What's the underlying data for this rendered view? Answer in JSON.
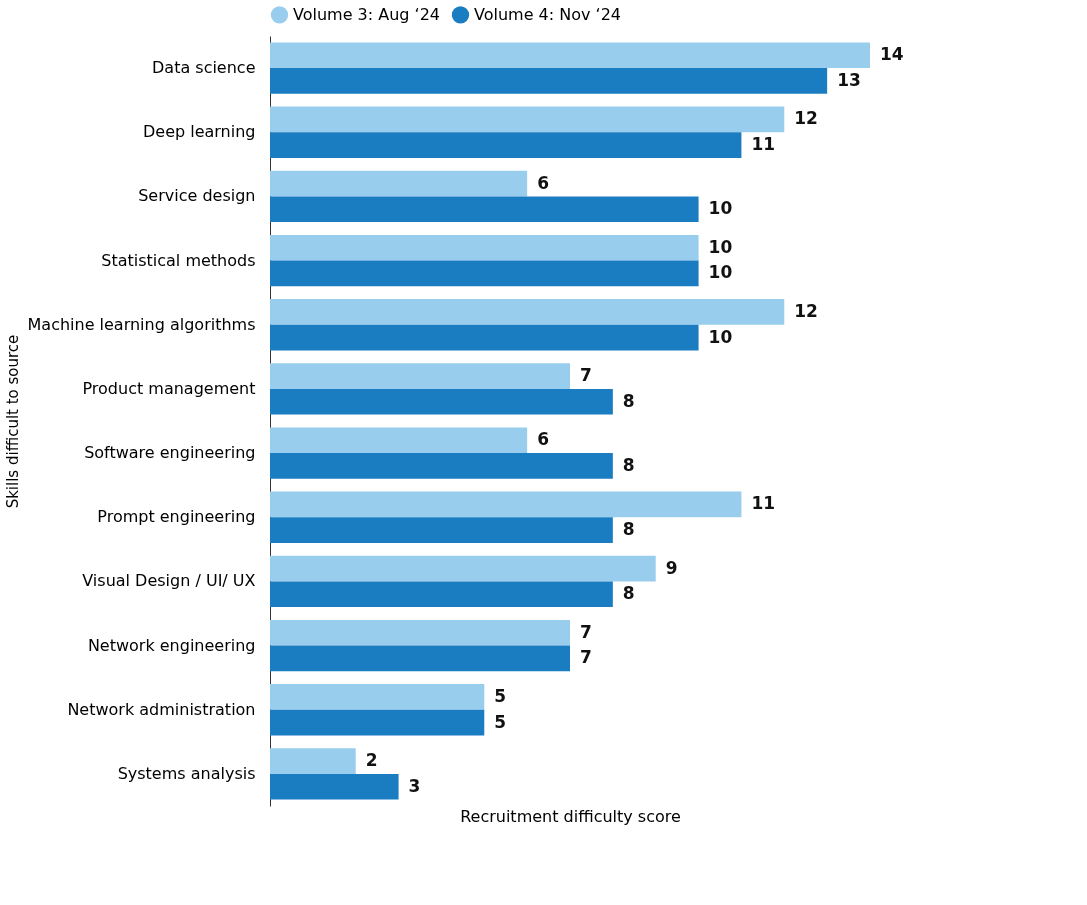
{
  "chart_data": {
    "type": "bar",
    "orientation": "horizontal",
    "xlabel": "Recruitment difficulty score",
    "ylabel": "Skills difficult to source",
    "categories": [
      "Data science",
      "Deep learning",
      "Service design",
      "Statistical methods",
      "Machine learning algorithms",
      "Product management",
      "Software engineering",
      "Prompt engineering",
      "Visual Design / UI/ UX",
      "Network engineering",
      "Network administration",
      "Systems analysis"
    ],
    "series": [
      {
        "name": "Volume 3: Aug ‘24",
        "color": "#99cdee",
        "values": [
          14,
          12,
          6,
          10,
          12,
          7,
          6,
          11,
          9,
          7,
          5,
          2
        ]
      },
      {
        "name": "Volume 4: Nov ‘24",
        "color": "#1a7cc1",
        "values": [
          13,
          11,
          10,
          10,
          10,
          8,
          8,
          8,
          8,
          7,
          5,
          3
        ]
      }
    ],
    "data_labels": true,
    "legend": "top",
    "grid": false
  }
}
